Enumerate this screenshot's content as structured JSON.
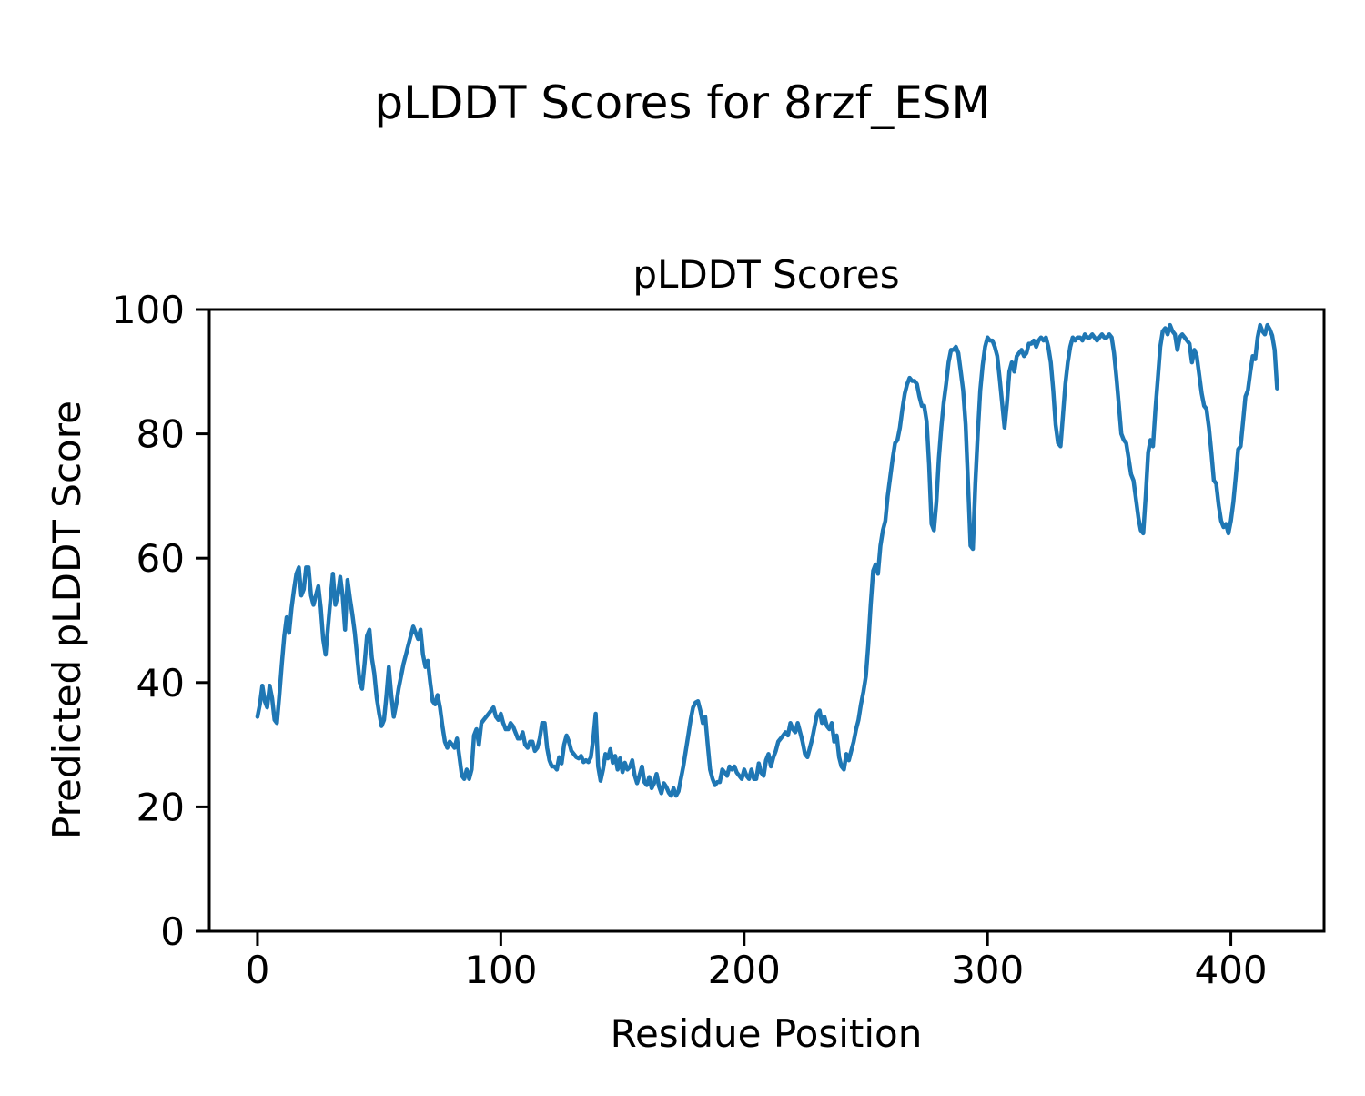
{
  "figure": {
    "suptitle": "pLDDT Scores for 8rzf_ESM",
    "background_color": "#ffffff",
    "text_color": "#000000"
  },
  "chart_data": {
    "type": "line",
    "title": "pLDDT Scores",
    "xlabel": "Residue Position",
    "ylabel": "Predicted pLDDT Score",
    "legend": null,
    "grid": false,
    "line_color": "#1f77b4",
    "axes_color": "#000000",
    "xlim": [
      -19.8,
      438.3
    ],
    "ylim": [
      0,
      100
    ],
    "xticks": [
      0,
      100,
      200,
      300,
      400
    ],
    "yticks": [
      0,
      20,
      40,
      60,
      80,
      100
    ],
    "x_start": 0,
    "x_step": 1,
    "values": [
      34.5,
      36.5,
      39.5,
      37.0,
      36.0,
      39.5,
      37.5,
      34.0,
      33.5,
      38.0,
      43.0,
      47.5,
      50.5,
      48.0,
      52.0,
      55.0,
      57.5,
      58.5,
      54.0,
      55.0,
      58.5,
      58.5,
      54.0,
      52.5,
      54.0,
      55.5,
      52.0,
      47.0,
      44.5,
      49.0,
      53.5,
      57.5,
      52.5,
      54.0,
      57.0,
      54.0,
      48.5,
      56.5,
      53.5,
      51.0,
      48.0,
      44.0,
      40.0,
      39.0,
      43.0,
      47.5,
      48.5,
      44.0,
      41.5,
      37.5,
      35.0,
      33.0,
      34.0,
      38.0,
      42.5,
      38.0,
      34.5,
      36.5,
      39.0,
      41.0,
      43.0,
      44.5,
      46.0,
      47.5,
      49.0,
      48.0,
      47.0,
      48.5,
      44.5,
      42.5,
      43.5,
      40.0,
      37.0,
      36.5,
      38.0,
      36.0,
      33.0,
      30.5,
      29.5,
      30.5,
      30.0,
      29.5,
      31.0,
      28.0,
      25.0,
      24.5,
      26.0,
      24.5,
      26.0,
      31.5,
      32.5,
      30.0,
      33.5,
      34.0,
      34.5,
      35.0,
      35.5,
      36.0,
      34.5,
      34.0,
      35.0,
      33.5,
      32.5,
      32.5,
      33.5,
      33.0,
      32.0,
      31.0,
      31.0,
      32.0,
      30.0,
      29.5,
      30.5,
      30.5,
      29.0,
      29.5,
      31.0,
      33.5,
      33.5,
      29.5,
      27.5,
      26.5,
      26.5,
      26.0,
      28.0,
      27.0,
      30.0,
      31.5,
      30.5,
      29.0,
      28.5,
      28.0,
      27.8,
      28.2,
      27.2,
      27.5,
      27.2,
      28.0,
      31.0,
      35.0,
      26.5,
      24.2,
      26.0,
      28.5,
      27.8,
      29.3,
      27.1,
      28.2,
      26.0,
      27.8,
      25.6,
      27.1,
      26.0,
      26.4,
      27.5,
      25.1,
      23.8,
      25.1,
      26.5,
      24.0,
      23.5,
      24.8,
      23.0,
      23.8,
      25.3,
      23.3,
      22.2,
      23.8,
      23.2,
      22.3,
      21.8,
      23.0,
      21.8,
      22.5,
      24.5,
      26.5,
      29.0,
      31.5,
      34.0,
      36.0,
      36.8,
      37.0,
      35.5,
      33.5,
      34.5,
      30.0,
      26.0,
      24.5,
      23.5,
      24.0,
      24.0,
      26.0,
      25.5,
      25.0,
      26.5,
      26.0,
      26.5,
      25.5,
      25.0,
      24.5,
      26.0,
      25.0,
      24.5,
      26.0,
      24.5,
      24.5,
      27.0,
      25.5,
      25.0,
      27.5,
      28.5,
      26.5,
      28.0,
      29.0,
      30.5,
      31.0,
      31.5,
      32.0,
      31.5,
      33.5,
      32.5,
      32.0,
      33.5,
      32.0,
      30.5,
      28.5,
      28.0,
      29.5,
      31.0,
      33.0,
      35.0,
      35.5,
      33.5,
      34.5,
      33.0,
      32.5,
      33.5,
      30.5,
      31.5,
      28.0,
      26.5,
      26.0,
      28.5,
      27.5,
      29.0,
      30.5,
      32.5,
      34.0,
      36.5,
      38.5,
      41.0,
      46.0,
      52.5,
      58.0,
      59.0,
      57.5,
      62.0,
      64.5,
      66.0,
      70.0,
      73.0,
      76.0,
      78.5,
      79.0,
      81.0,
      84.0,
      86.5,
      88.0,
      89.0,
      88.5,
      88.5,
      88.0,
      86.0,
      84.5,
      84.5,
      82.0,
      75.0,
      65.5,
      64.5,
      69.0,
      76.0,
      81.0,
      85.0,
      88.0,
      91.5,
      93.5,
      93.5,
      94.0,
      93.0,
      90.0,
      87.0,
      81.5,
      72.0,
      62.0,
      61.5,
      72.0,
      80.0,
      87.0,
      91.0,
      94.0,
      95.5,
      95.0,
      95.0,
      94.0,
      92.5,
      89.0,
      85.0,
      81.0,
      85.0,
      90.0,
      91.5,
      90.0,
      92.5,
      93.0,
      93.5,
      92.5,
      93.0,
      94.5,
      94.5,
      95.0,
      94.0,
      95.0,
      95.5,
      95.0,
      95.5,
      94.0,
      91.5,
      87.0,
      81.5,
      78.5,
      78.0,
      83.0,
      88.0,
      91.5,
      94.0,
      95.5,
      95.0,
      95.5,
      95.5,
      95.0,
      96.0,
      95.5,
      95.5,
      96.0,
      95.5,
      95.0,
      95.5,
      96.0,
      95.5,
      95.5,
      96.0,
      95.5,
      93.0,
      89.0,
      84.5,
      80.0,
      79.0,
      78.5,
      76.0,
      73.5,
      72.5,
      69.5,
      66.5,
      64.5,
      64.0,
      70.0,
      77.0,
      79.0,
      78.0,
      84.0,
      89.0,
      94.0,
      96.5,
      97.0,
      96.0,
      97.5,
      96.5,
      96.0,
      93.5,
      95.5,
      96.0,
      95.5,
      95.0,
      94.5,
      91.5,
      93.5,
      92.5,
      89.5,
      86.5,
      84.5,
      84.0,
      81.0,
      77.0,
      72.5,
      72.0,
      68.5,
      66.0,
      65.0,
      65.5,
      64.0,
      66.0,
      69.0,
      73.0,
      77.5,
      78.0,
      82.0,
      86.0,
      87.0,
      90.0,
      92.5,
      92.0,
      95.5,
      97.5,
      96.5,
      96.0,
      97.5,
      96.8,
      95.8,
      93.5,
      87.3
    ]
  }
}
